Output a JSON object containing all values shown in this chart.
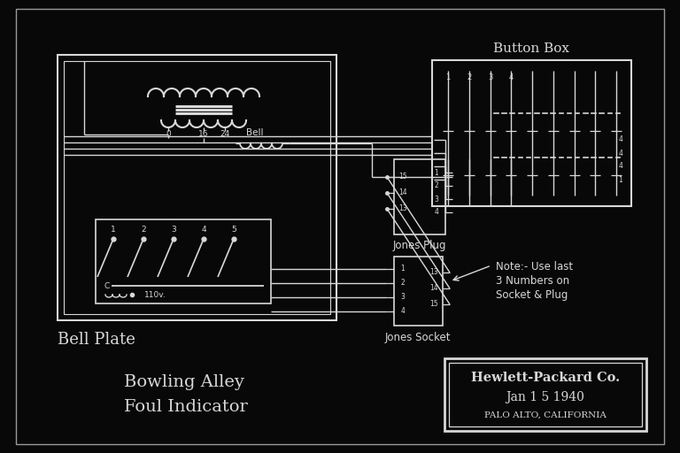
{
  "bg_color": "#080808",
  "fg_color": "#d8d8d8",
  "title_line1": "Bowling Alley",
  "title_line2": "Foul Indicator",
  "company": "Hewlett-Packard Co.",
  "date": "Jan 1 5 1940",
  "location": "Palo Alto, California",
  "bell_plate_label": "Bell Plate",
  "button_box_label": "Button Box",
  "jones_plug_label": "Jones Plug",
  "jones_socket_label": "Jones Socket",
  "note_line1": "Note:- Use last",
  "note_line2": "3 Numbers on",
  "note_line3": "Socket & Plug"
}
